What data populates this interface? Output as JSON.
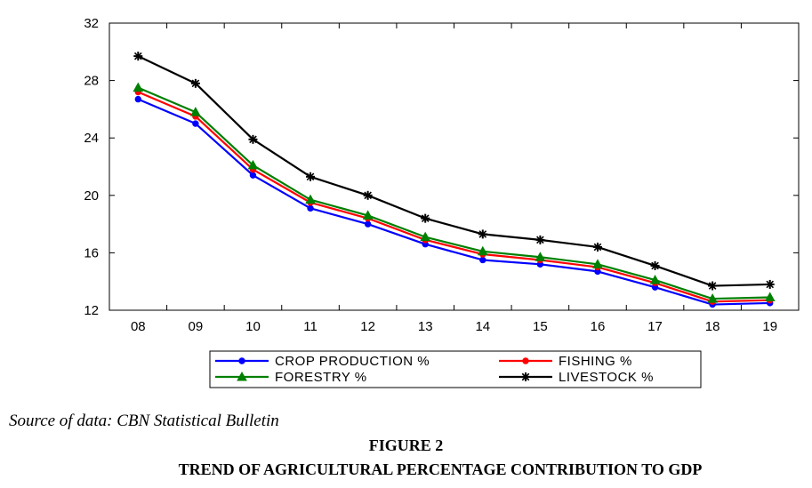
{
  "chart_data": {
    "type": "line",
    "categories": [
      "08",
      "09",
      "10",
      "11",
      "12",
      "13",
      "14",
      "15",
      "16",
      "17",
      "18",
      "19"
    ],
    "ylim": [
      12,
      32
    ],
    "yticks": [
      12,
      16,
      20,
      24,
      28,
      32
    ],
    "grid": false,
    "legend_position": "bottom",
    "series": [
      {
        "name": "CROP PRODUCTION %",
        "color": "#0000ff",
        "marker": "circle",
        "values": [
          26.7,
          25.0,
          21.4,
          19.1,
          18.0,
          16.6,
          15.5,
          15.2,
          14.7,
          13.6,
          12.4,
          12.5
        ]
      },
      {
        "name": "FISHING %",
        "color": "#ff0000",
        "marker": "circle",
        "values": [
          27.2,
          25.5,
          21.8,
          19.5,
          18.4,
          16.9,
          15.9,
          15.5,
          15.0,
          13.9,
          12.6,
          12.7
        ]
      },
      {
        "name": "FORESTRY %",
        "color": "#008000",
        "marker": "triangle",
        "values": [
          27.5,
          25.8,
          22.1,
          19.7,
          18.6,
          17.1,
          16.1,
          15.7,
          15.2,
          14.1,
          12.8,
          12.9
        ]
      },
      {
        "name": "LIVESTOCK %",
        "color": "#000000",
        "marker": "star",
        "values": [
          29.7,
          27.8,
          23.9,
          21.3,
          20.0,
          18.4,
          17.3,
          16.9,
          16.4,
          15.1,
          13.7,
          13.8
        ]
      }
    ]
  },
  "caption": {
    "source": "Source of data: CBN Statistical Bulletin",
    "figure_number": "FIGURE 2",
    "figure_title": "TREND OF AGRICULTURAL PERCENTAGE CONTRIBUTION TO GDP"
  }
}
